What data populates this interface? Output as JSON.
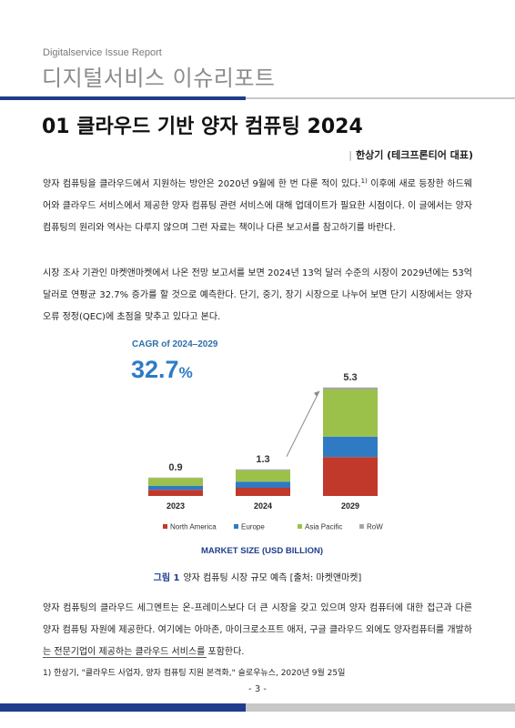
{
  "header": {
    "series_label": "Digitalservice Issue Report",
    "series_title": "디지털서비스 이슈리포트"
  },
  "article": {
    "title": "01 클라우드 기반 양자 컴퓨팅 2024",
    "author": "한상기 (테크프론티어 대표)",
    "paragraphs": {
      "p1_main": "양자 컴퓨팅을 클라우드에서 지원하는 방안은 2020년 9월에 한 번 다룬 적이 있다.",
      "p1_ref": "1)",
      "p1_rest": " 이후에 새로 등장한 하드웨어와 클라우드 서비스에서 제공한 양자 컴퓨팅 관련 서비스에 대해 업데이트가 필요한 시점이다. 이 글에서는 양자 컴퓨팅의 원리와 역사는 다루지 않으며 그런 자료는 책이나 다른 보고서를 참고하기를 바란다.",
      "p2": "시장 조사 기관인 마켓앤마켓에서 나온 전망 보고서를 보면 2024년 13억 달러 수준의 시장이 2029년에는 53억 달러로 연평균 32.7% 증가를 할 것으로 예측한다. 단기, 중기, 장기 시장으로 나누어 보면 단기 시장에서는 양자 오류 정정(QEC)에 초점을 맞추고 있다고 본다.",
      "p3": "양자 컴퓨팅의 클라우드 세그멘트는 온-프레미스보다 더 큰 시장을 갖고 있으며 양자 컴퓨터에 대한 접근과 다른 양자 컴퓨팅 자원에 제공한다. 여기에는 아마존, 마이크로소프트 애저, 구글 클라우드 외에도 양자컴퓨터를 개발하는 전문기업이 제공하는 클라우드 서비스를 포함한다."
    },
    "figure": {
      "label": "그림 1",
      "caption": "양자 컴퓨팅 시장 규모 예측 [출처: 마켓앤마켓]"
    },
    "footnote": "1) 한상기, \"클라우드 사업자, 양자 컴퓨팅 지원 본격화,\" 슬로우뉴스, 2020년 9월 25일",
    "page_number": "- 3 -"
  },
  "chart_data": {
    "type": "bar",
    "stacked": true,
    "cagr_label": "CAGR of 2024–2029",
    "cagr_value": "32.7",
    "cagr_unit": "%",
    "categories": [
      "2023",
      "2024",
      "2029"
    ],
    "totals": [
      0.9,
      1.3,
      5.3
    ],
    "total_labels": [
      "0.9",
      "1.3",
      "5.3"
    ],
    "series": [
      {
        "name": "North America",
        "color": "#c0392b",
        "values": [
          0.3,
          0.4,
          1.9
        ]
      },
      {
        "name": "Europe",
        "color": "#2e7bc4",
        "values": [
          0.2,
          0.3,
          1.0
        ]
      },
      {
        "name": "Asia Pacific",
        "color": "#9cc14b",
        "values": [
          0.38,
          0.55,
          2.3
        ]
      },
      {
        "name": "RoW",
        "color": "#a6a6a6",
        "values": [
          0.02,
          0.05,
          0.1
        ]
      }
    ],
    "xlabel": "MARKET SIZE (USD BILLION)",
    "legend_position": "bottom",
    "accent_color": "#2e7bc4",
    "title_color": "#2e6fa8"
  },
  "colors": {
    "brand_blue": "#1f3d8c",
    "rule_gray": "#c8c8c8"
  }
}
